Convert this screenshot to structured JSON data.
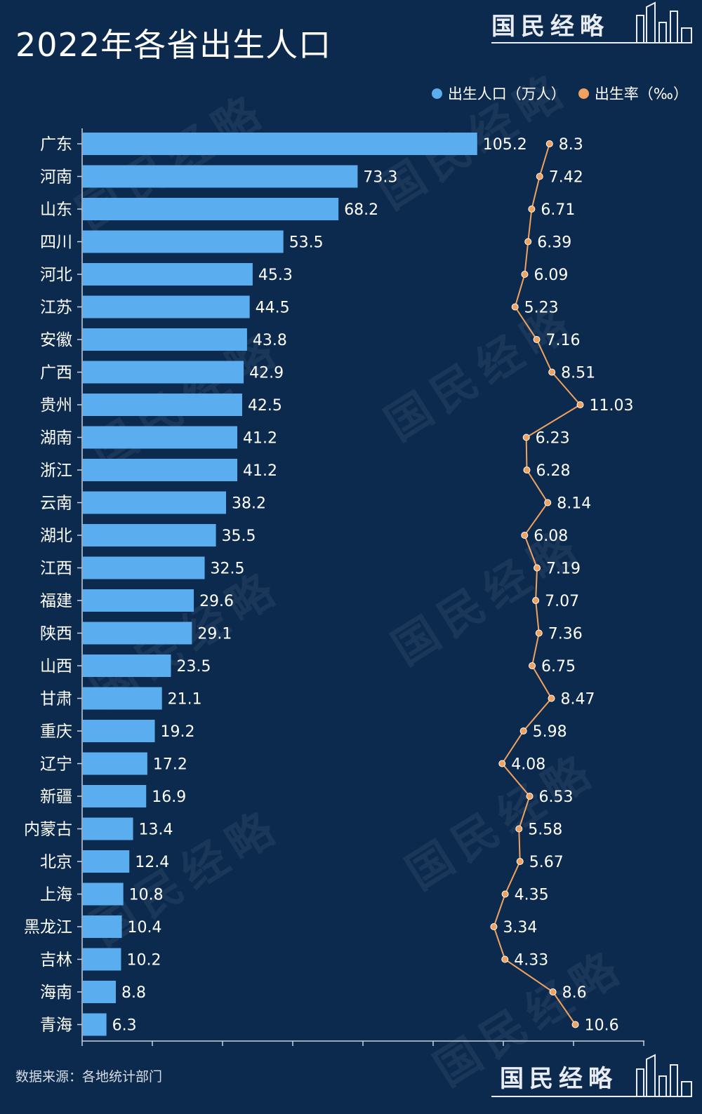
{
  "header": {
    "title": "2022年各省出生人口"
  },
  "brand": {
    "name": "国民经略"
  },
  "legend": {
    "births_label": "出生人口（万人）",
    "rate_label": "出生率（‰）"
  },
  "footer": {
    "source": "数据来源：各地统计部门"
  },
  "colors": {
    "background": "#0c2a4d",
    "bar": "#5aaef0",
    "line": "#f0a25f",
    "text": "#ffffff"
  },
  "chart_data": {
    "type": "bar",
    "orientation": "horizontal",
    "title": "2022年各省出生人口",
    "categories": [
      "广东",
      "河南",
      "山东",
      "四川",
      "河北",
      "江苏",
      "安徽",
      "广西",
      "贵州",
      "湖南",
      "浙江",
      "云南",
      "湖北",
      "江西",
      "福建",
      "陕西",
      "山西",
      "甘肃",
      "重庆",
      "辽宁",
      "新疆",
      "内蒙古",
      "北京",
      "上海",
      "黑龙江",
      "吉林",
      "海南",
      "青海"
    ],
    "series": [
      {
        "name": "出生人口（万人）",
        "type": "bar",
        "labels": [
          "105.2",
          "73.3",
          "68.2",
          "53.5",
          "45.3",
          "44.5",
          "43.8",
          "42.9",
          "42.5",
          "41.2",
          "41.2",
          "38.2",
          "35.5",
          "32.5",
          "29.6",
          "29.1",
          "23.5",
          "21.1",
          "19.2",
          "17.2",
          "16.9",
          "13.4",
          "12.4",
          "10.8",
          "10.4",
          "10.2",
          "8.8",
          "6.3"
        ],
        "values": [
          105.2,
          73.3,
          68.2,
          53.5,
          45.3,
          44.5,
          43.8,
          42.9,
          42.5,
          41.2,
          41.2,
          38.2,
          35.5,
          32.5,
          29.6,
          29.1,
          23.5,
          21.1,
          19.2,
          17.2,
          16.9,
          13.4,
          12.4,
          10.8,
          10.4,
          10.2,
          8.8,
          6.3
        ]
      },
      {
        "name": "出生率（‰）",
        "type": "line",
        "labels": [
          "8.3",
          "7.42",
          "6.71",
          "6.39",
          "6.09",
          "5.23",
          "7.16",
          "8.51",
          "11.03",
          "6.23",
          "6.28",
          "8.14",
          "6.08",
          "7.19",
          "7.07",
          "7.36",
          "6.75",
          "8.47",
          "5.98",
          "4.08",
          "6.53",
          "5.58",
          "5.67",
          "4.35",
          "3.34",
          "4.33",
          "8.6",
          "10.6"
        ],
        "values": [
          8.3,
          7.42,
          6.71,
          6.39,
          6.09,
          5.23,
          7.16,
          8.51,
          11.03,
          6.23,
          6.28,
          8.14,
          6.08,
          7.19,
          7.07,
          7.36,
          6.75,
          8.47,
          5.98,
          4.08,
          6.53,
          5.58,
          5.67,
          4.35,
          3.34,
          4.33,
          8.6,
          10.6
        ]
      }
    ],
    "legend_position": "top-right",
    "grid": false
  }
}
